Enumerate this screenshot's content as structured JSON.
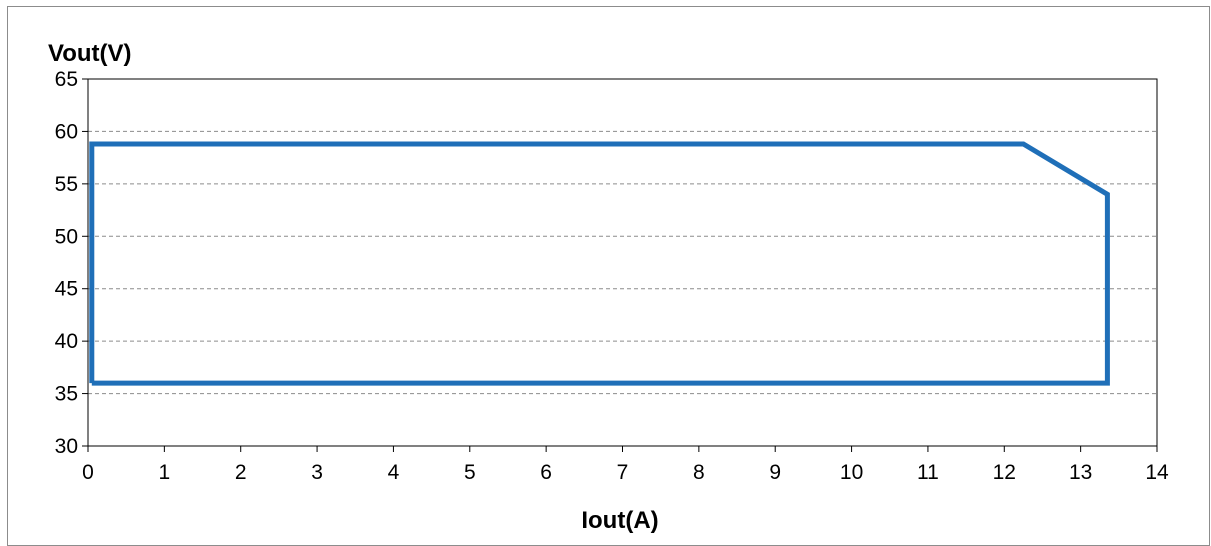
{
  "chart_data": {
    "type": "line",
    "xlabel": "Iout(A)",
    "ylabel": "Vout(V)",
    "xlim": [
      0,
      14
    ],
    "ylim": [
      30,
      65
    ],
    "xticks": [
      "0",
      "1",
      "2",
      "3",
      "4",
      "5",
      "6",
      "7",
      "8",
      "9",
      "10",
      "11",
      "12",
      "13",
      "14"
    ],
    "yticks": [
      "30",
      "35",
      "40",
      "45",
      "50",
      "55",
      "60",
      "65"
    ],
    "grid": "horizontal-dashed",
    "series": [
      {
        "color": "#1f6fb8",
        "points": [
          {
            "x": 0.05,
            "y": 36
          },
          {
            "x": 0.05,
            "y": 58.8
          },
          {
            "x": 12.25,
            "y": 58.8
          },
          {
            "x": 13.35,
            "y": 54
          },
          {
            "x": 13.35,
            "y": 36
          },
          {
            "x": 0.05,
            "y": 36
          }
        ]
      }
    ]
  }
}
